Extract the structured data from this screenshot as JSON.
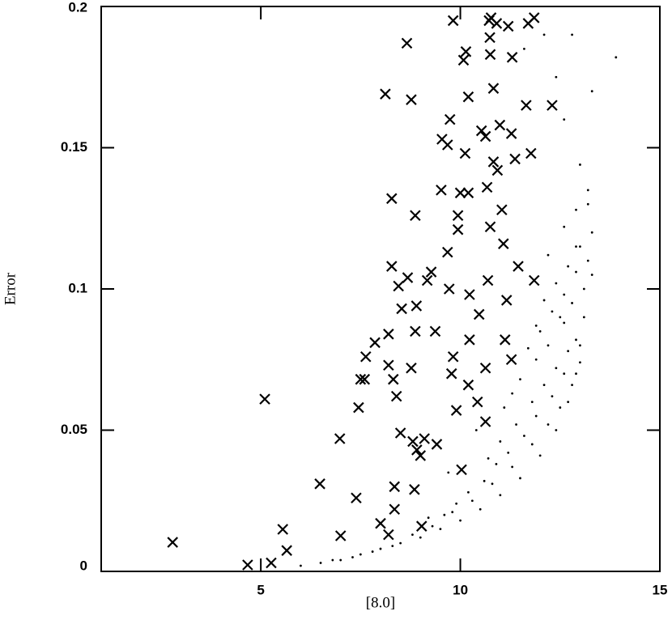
{
  "chart_data": {
    "type": "scatter",
    "x_label": "[8.0]",
    "y_label": "Error",
    "xlim": [
      1,
      15
    ],
    "ylim": [
      0,
      0.2
    ],
    "xticks": [
      5,
      10,
      15
    ],
    "yticks": [
      0,
      0.05,
      0.1,
      0.15,
      0.2
    ],
    "grid": false,
    "series": [
      {
        "marker": "x",
        "color": "#000000",
        "x": [
          2.79,
          4.67,
          5.26,
          5.65,
          5.55,
          5.1,
          6.48,
          7.0,
          6.98,
          7.39,
          7.45,
          7.5,
          7.6,
          7.63,
          7.86,
          8.12,
          8.28,
          8.28,
          8.2,
          8.2,
          8.32,
          8.4,
          8.5,
          8.35,
          8.35,
          8.0,
          8.2,
          8.45,
          8.53,
          8.66,
          8.77,
          8.87,
          8.68,
          8.9,
          8.87,
          8.77,
          8.81,
          8.91,
          9.0,
          8.85,
          9.03,
          9.1,
          9.17,
          9.27,
          9.37,
          9.41,
          9.52,
          9.54,
          9.68,
          9.74,
          9.82,
          9.68,
          9.72,
          9.82,
          9.78,
          9.9,
          9.94,
          9.94,
          10.0,
          10.08,
          10.14,
          10.2,
          10.12,
          10.2,
          10.23,
          10.23,
          10.2,
          10.43,
          10.47,
          10.53,
          10.63,
          10.72,
          10.75,
          10.74,
          10.77,
          10.83,
          10.83,
          10.67,
          10.75,
          10.69,
          10.63,
          10.63,
          10.91,
          10.99,
          10.93,
          11.04,
          11.08,
          11.16,
          11.12,
          11.2,
          11.3,
          11.28,
          11.37,
          11.45,
          11.28,
          11.65,
          11.77,
          11.7,
          11.85,
          11.85,
          12.3,
          10.03
        ],
        "values": [
          0.0103,
          0.0023,
          0.003,
          0.0074,
          0.0149,
          0.061,
          0.031,
          0.0126,
          0.047,
          0.026,
          0.058,
          0.068,
          0.068,
          0.076,
          0.081,
          0.169,
          0.132,
          0.108,
          0.084,
          0.073,
          0.068,
          0.062,
          0.049,
          0.03,
          0.022,
          0.017,
          0.013,
          0.101,
          0.093,
          0.187,
          0.167,
          0.126,
          0.104,
          0.094,
          0.085,
          0.072,
          0.046,
          0.043,
          0.041,
          0.029,
          0.016,
          0.047,
          0.103,
          0.106,
          0.085,
          0.045,
          0.135,
          0.153,
          0.151,
          0.16,
          0.195,
          0.113,
          0.1,
          0.076,
          0.07,
          0.057,
          0.126,
          0.121,
          0.134,
          0.181,
          0.184,
          0.168,
          0.148,
          0.134,
          0.098,
          0.082,
          0.066,
          0.06,
          0.091,
          0.156,
          0.154,
          0.195,
          0.183,
          0.189,
          0.196,
          0.171,
          0.145,
          0.136,
          0.122,
          0.103,
          0.072,
          0.053,
          0.194,
          0.158,
          0.142,
          0.128,
          0.116,
          0.096,
          0.082,
          0.193,
          0.182,
          0.155,
          0.146,
          0.108,
          0.075,
          0.165,
          0.148,
          0.194,
          0.196,
          0.103,
          0.165,
          0.036
        ]
      },
      {
        "marker": "dot",
        "color": "#000000",
        "x": [
          6.0,
          6.5,
          7.0,
          7.5,
          8.0,
          8.5,
          9.0,
          9.5,
          10.0,
          10.5,
          11.0,
          11.5,
          12.0,
          12.4,
          12.7,
          12.9,
          13.0,
          13.1,
          6.8,
          7.3,
          7.8,
          8.3,
          8.8,
          9.3,
          9.8,
          10.3,
          10.8,
          11.3,
          11.8,
          12.2,
          12.5,
          12.8,
          13.0,
          12.6,
          12.3,
          11.9,
          11.6,
          11.2,
          10.9,
          10.6,
          10.2,
          9.9,
          9.6,
          9.2,
          12.9,
          12.7,
          12.4,
          12.1,
          11.8,
          11.4,
          11.0,
          10.7,
          12.6,
          12.2,
          11.9,
          11.5,
          13.1,
          12.8,
          12.5,
          12.0,
          11.7,
          11.3,
          13.2,
          12.9,
          12.6,
          12.3,
          11.9,
          13.3,
          13.0,
          12.7,
          12.4,
          12.1,
          13.2,
          12.9,
          12.6,
          12.2,
          13.9,
          13.3,
          13.0,
          12.6,
          13.2,
          13.3,
          12.9,
          12.1,
          12.4,
          11.6,
          12.8,
          10.4,
          9.7,
          11.1
        ],
        "values": [
          0.002,
          0.003,
          0.004,
          0.006,
          0.008,
          0.01,
          0.012,
          0.015,
          0.018,
          0.022,
          0.027,
          0.033,
          0.041,
          0.05,
          0.06,
          0.07,
          0.08,
          0.09,
          0.004,
          0.005,
          0.007,
          0.009,
          0.013,
          0.016,
          0.021,
          0.025,
          0.031,
          0.037,
          0.045,
          0.052,
          0.058,
          0.066,
          0.074,
          0.07,
          0.062,
          0.055,
          0.048,
          0.042,
          0.038,
          0.032,
          0.028,
          0.024,
          0.02,
          0.019,
          0.082,
          0.078,
          0.072,
          0.066,
          0.06,
          0.052,
          0.046,
          0.04,
          0.088,
          0.08,
          0.075,
          0.068,
          0.1,
          0.095,
          0.09,
          0.085,
          0.079,
          0.063,
          0.11,
          0.106,
          0.098,
          0.092,
          0.087,
          0.12,
          0.115,
          0.108,
          0.102,
          0.096,
          0.135,
          0.128,
          0.122,
          0.112,
          0.182,
          0.17,
          0.144,
          0.16,
          0.13,
          0.105,
          0.115,
          0.19,
          0.175,
          0.185,
          0.19,
          0.05,
          0.035,
          0.058
        ]
      }
    ]
  }
}
